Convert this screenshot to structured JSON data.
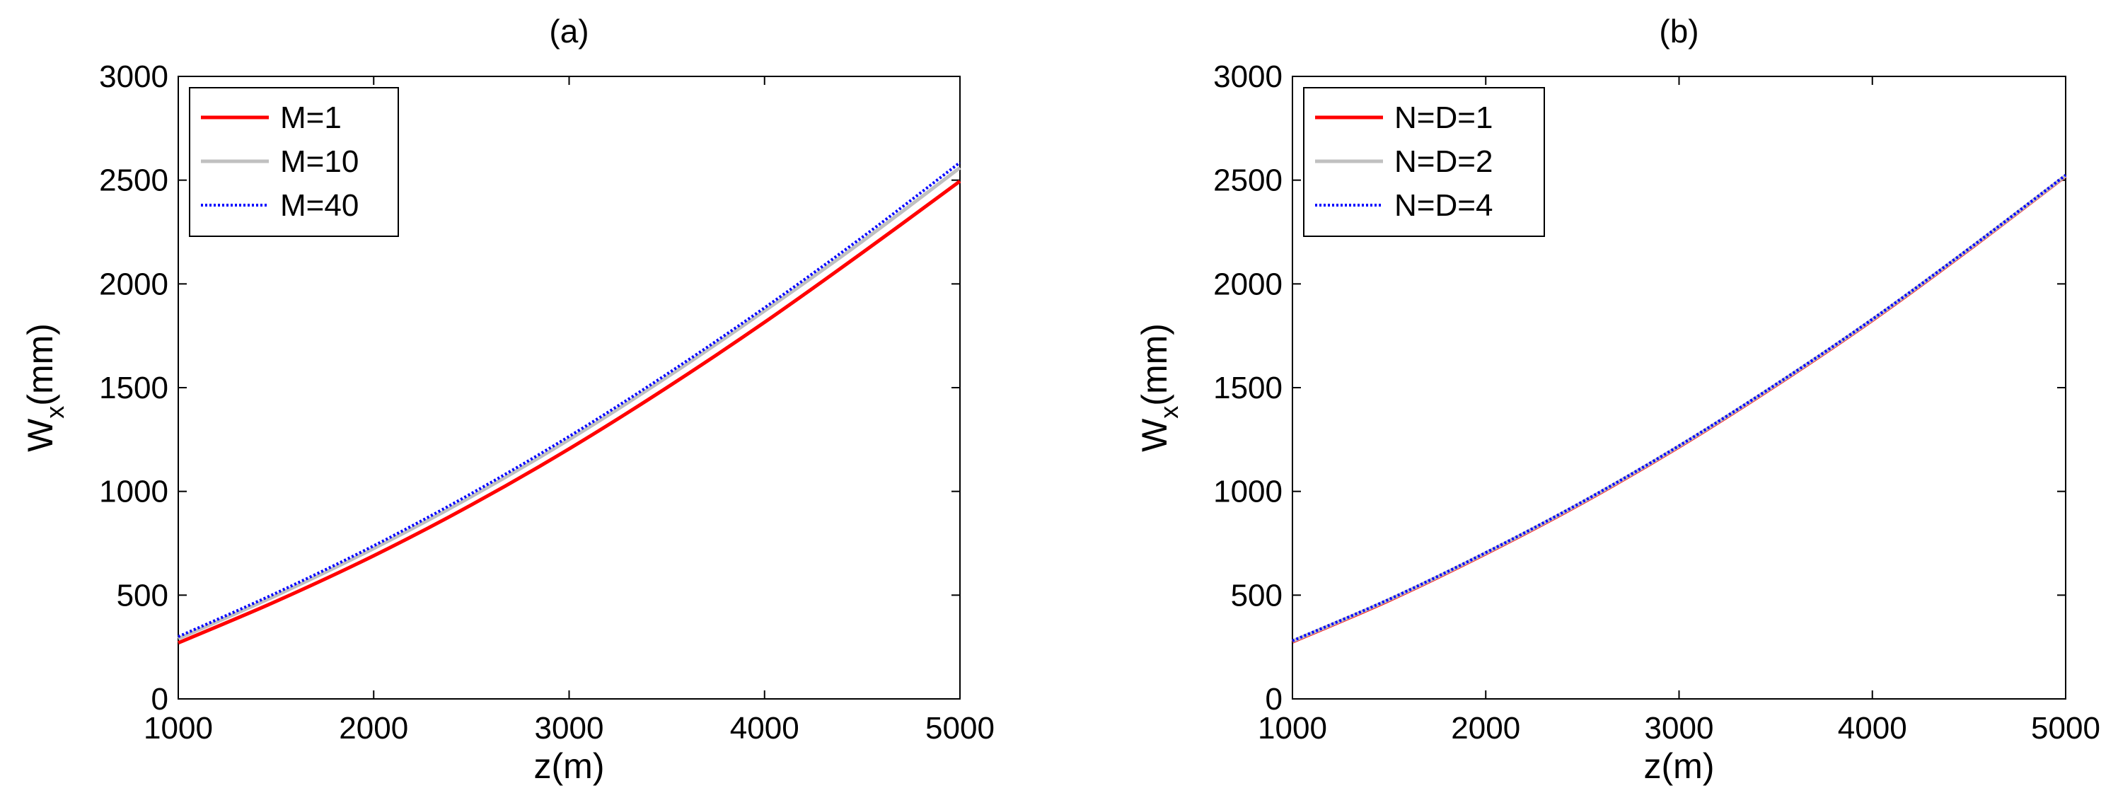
{
  "chart_data": [
    {
      "type": "line",
      "title": "(a)",
      "xlabel": "z(m)",
      "ylabel": {
        "main": "W",
        "sub": "x",
        "unit": "(mm)"
      },
      "xlim": [
        1000,
        5000
      ],
      "ylim": [
        0,
        3000
      ],
      "xticks": [
        1000,
        2000,
        3000,
        4000,
        5000
      ],
      "yticks": [
        0,
        500,
        1000,
        1500,
        2000,
        2500,
        3000
      ],
      "grid": false,
      "legend_position": "top-left",
      "x": [
        1000,
        1500,
        2000,
        2500,
        3000,
        3500,
        4000,
        4500,
        5000
      ],
      "series": [
        {
          "name": "M=1",
          "color": "#ff0000",
          "style": "solid",
          "values": [
            270,
            470,
            690,
            935,
            1205,
            1500,
            1815,
            2150,
            2495
          ]
        },
        {
          "name": "M=10",
          "color": "#c0c0c0",
          "style": "solid",
          "values": [
            290,
            498,
            725,
            975,
            1250,
            1550,
            1870,
            2205,
            2560
          ]
        },
        {
          "name": "M=40",
          "color": "#0000ff",
          "style": "dotted",
          "values": [
            300,
            510,
            738,
            990,
            1265,
            1565,
            1885,
            2225,
            2585
          ]
        }
      ]
    },
    {
      "type": "line",
      "title": "(b)",
      "xlabel": "z(m)",
      "ylabel": {
        "main": "W",
        "sub": "x",
        "unit": "(mm)"
      },
      "xlim": [
        1000,
        5000
      ],
      "ylim": [
        0,
        3000
      ],
      "xticks": [
        1000,
        2000,
        3000,
        4000,
        5000
      ],
      "yticks": [
        0,
        500,
        1000,
        1500,
        2000,
        2500,
        3000
      ],
      "grid": false,
      "legend_position": "top-left",
      "x": [
        1000,
        1500,
        2000,
        2500,
        3000,
        3500,
        4000,
        4500,
        5000
      ],
      "series": [
        {
          "name": "N=D=1",
          "color": "#ff0000",
          "style": "solid",
          "values": [
            275,
            475,
            700,
            945,
            1215,
            1510,
            1825,
            2165,
            2520
          ]
        },
        {
          "name": "N=D=2",
          "color": "#c0c0c0",
          "style": "solid",
          "values": [
            278,
            478,
            703,
            948,
            1218,
            1513,
            1828,
            2168,
            2522
          ]
        },
        {
          "name": "N=D=4",
          "color": "#0000ff",
          "style": "dotted",
          "values": [
            280,
            480,
            705,
            950,
            1220,
            1515,
            1830,
            2170,
            2524
          ]
        }
      ]
    }
  ]
}
